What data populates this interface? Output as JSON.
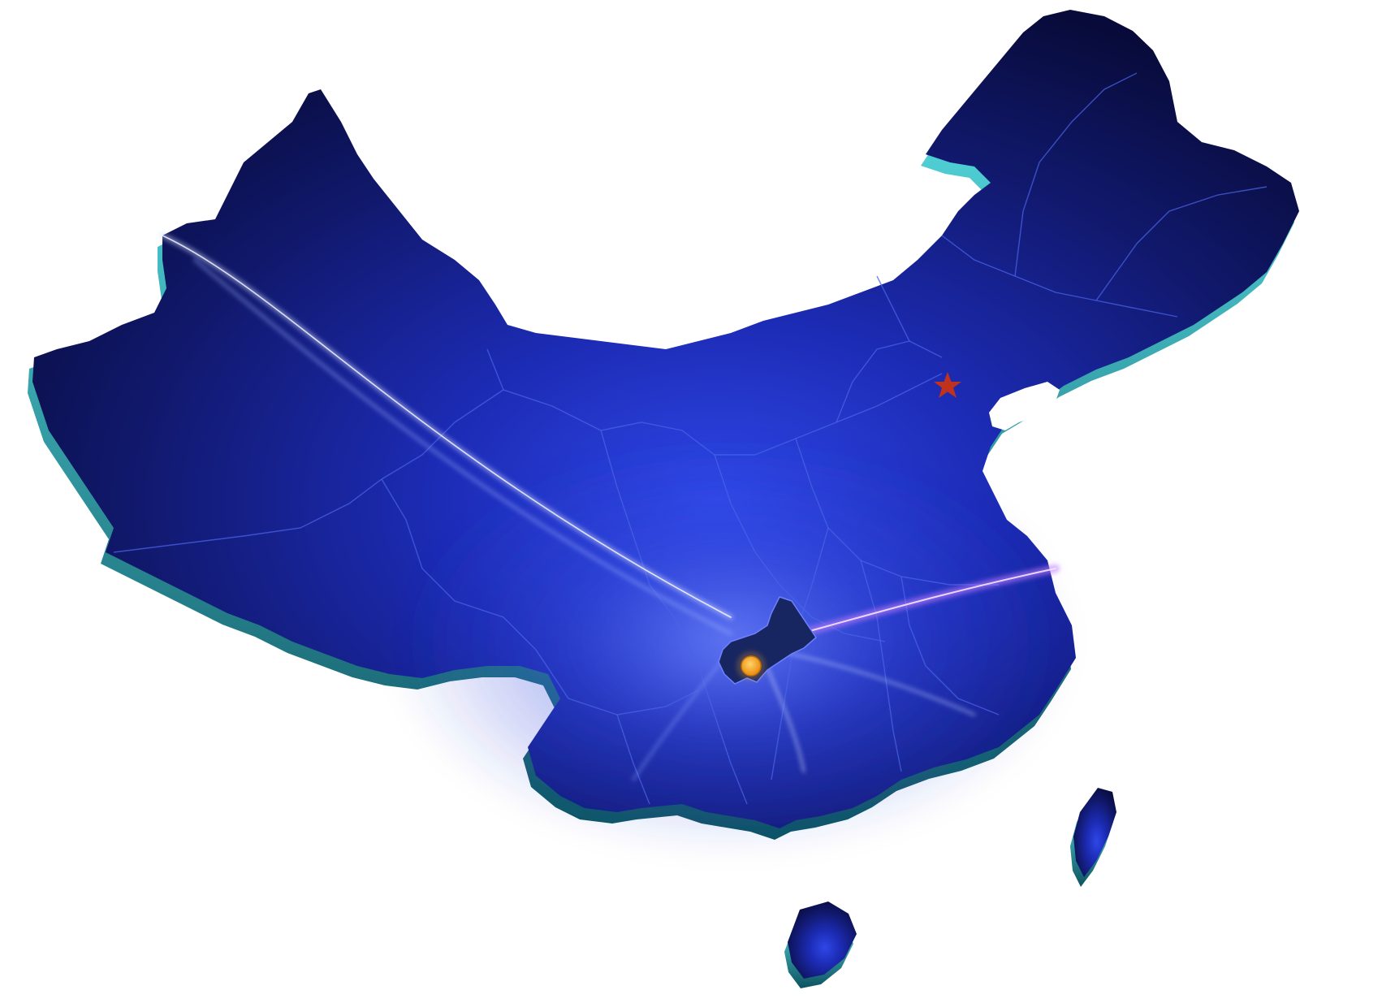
{
  "map": {
    "region": "China",
    "style": "3D extruded provincial map with glowing light streaks",
    "colors": {
      "land_dark": "#0a0f45",
      "land_mid": "#14208a",
      "land_bright": "#2a3fd8",
      "extrusion_edge": "#3fd8e0",
      "extrusion_shadow": "#0f4f5c",
      "province_border": "#4a63e6",
      "highlight_region": "#1a2a66",
      "light_streak": "#9fb4ff",
      "light_streak_warm": "#c07cff",
      "background": "#ffffff"
    },
    "markers": [
      {
        "type": "star",
        "color": "#c0311e",
        "icon": "star-icon"
      },
      {
        "type": "dot",
        "color": "#f4a31c",
        "icon": "location-dot-icon"
      }
    ],
    "highlighted_province": "Chongqing"
  }
}
